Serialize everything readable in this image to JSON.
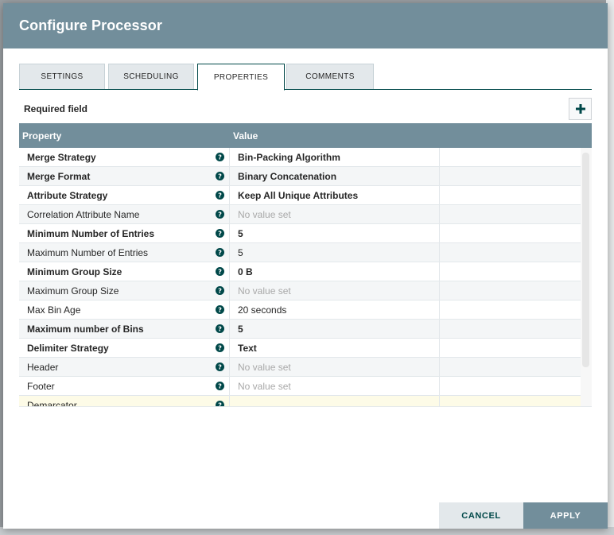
{
  "dialog": {
    "title": "Configure Processor"
  },
  "tabs": [
    {
      "label": "SETTINGS",
      "active": false
    },
    {
      "label": "SCHEDULING",
      "active": false
    },
    {
      "label": "PROPERTIES",
      "active": true
    },
    {
      "label": "COMMENTS",
      "active": false
    }
  ],
  "properties_panel": {
    "required_field_label": "Required field",
    "columns": {
      "property": "Property",
      "value": "Value"
    },
    "rows": [
      {
        "name": "Merge Strategy",
        "value": "Bin-Packing Algorithm",
        "required": true,
        "set": true
      },
      {
        "name": "Merge Format",
        "value": "Binary Concatenation",
        "required": true,
        "set": true
      },
      {
        "name": "Attribute Strategy",
        "value": "Keep All Unique Attributes",
        "required": true,
        "set": true
      },
      {
        "name": "Correlation Attribute Name",
        "value": "No value set",
        "required": false,
        "set": false
      },
      {
        "name": "Minimum Number of Entries",
        "value": "5",
        "required": true,
        "set": true
      },
      {
        "name": "Maximum Number of Entries",
        "value": "5",
        "required": false,
        "set": true
      },
      {
        "name": "Minimum Group Size",
        "value": "0 B",
        "required": true,
        "set": true
      },
      {
        "name": "Maximum Group Size",
        "value": "No value set",
        "required": false,
        "set": false
      },
      {
        "name": "Max Bin Age",
        "value": "20 seconds",
        "required": false,
        "set": true
      },
      {
        "name": "Maximum number of Bins",
        "value": "5",
        "required": true,
        "set": true
      },
      {
        "name": "Delimiter Strategy",
        "value": "Text",
        "required": true,
        "set": true
      },
      {
        "name": "Header",
        "value": "No value set",
        "required": false,
        "set": false
      },
      {
        "name": "Footer",
        "value": "No value set",
        "required": false,
        "set": false
      },
      {
        "name": "Demarcator",
        "value": "",
        "required": false,
        "set": false
      }
    ]
  },
  "buttons": {
    "cancel": "CANCEL",
    "apply": "APPLY"
  },
  "colors": {
    "header": "#728e9b",
    "accent": "#004849",
    "help_icon": "#004849",
    "row_highlight": "#fdfbe7"
  },
  "icons": {
    "add": "plus-icon",
    "help": "question-circle-icon"
  }
}
